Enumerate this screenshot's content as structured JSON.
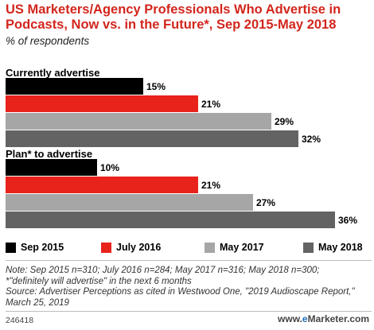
{
  "title": "US Marketers/Agency Professionals Who Advertise in Podcasts, Now vs. in the Future*, Sep 2015-May 2018",
  "subtitle": "% of respondents",
  "chart_data": {
    "type": "bar",
    "orientation": "horizontal",
    "title": "US Marketers/Agency Professionals Who Advertise in Podcasts, Now vs. in the Future*, Sep 2015-May 2018",
    "subtitle": "% of respondents",
    "value_suffix": "%",
    "xlim": [
      0,
      40
    ],
    "grid": false,
    "legend_position": "bottom",
    "series_names": [
      "Sep 2015",
      "July 2016",
      "May 2017",
      "May 2018"
    ],
    "series_colors": [
      "#000000",
      "#e8231b",
      "#a6a6a6",
      "#636363"
    ],
    "groups": [
      {
        "label": "Currently advertise",
        "values": [
          15,
          21,
          29,
          32
        ]
      },
      {
        "label": "Plan* to advertise",
        "values": [
          10,
          21,
          27,
          36
        ]
      }
    ]
  },
  "legend": [
    {
      "label": "Sep 2015",
      "color": "#000000"
    },
    {
      "label": "July 2016",
      "color": "#e8231b"
    },
    {
      "label": "May 2017",
      "color": "#a6a6a6"
    },
    {
      "label": "May 2018",
      "color": "#636363"
    }
  ],
  "note": "Note: Sep 2015 n=310; July 2016 n=284; May 2017 n=316; May 2018 n=300; *\"definitely will advertise\" in the next 6 months",
  "source": "Source: Advertiser Perceptions as cited in Westwood One, \"2019 Audioscape Report,\" March 25, 2019",
  "chart_id": "246418",
  "logo": {
    "prefix": "www.",
    "brand_e": "e",
    "brand_rest": "Marketer",
    "suffix": ".com"
  }
}
